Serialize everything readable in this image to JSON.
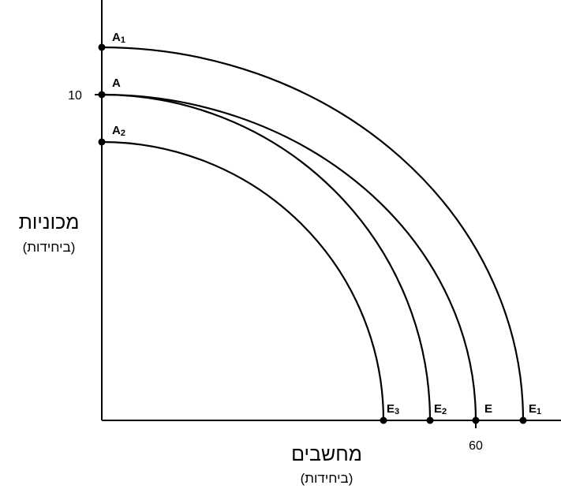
{
  "axes": {
    "y_label": "מכוניות",
    "y_unit": "(ביחידות)",
    "x_label": "מחשבים",
    "x_unit": "(ביחידות)",
    "y_tick": "10",
    "x_tick": "60"
  },
  "points": [
    {
      "label": "A",
      "sub": "1"
    },
    {
      "label": "A"
    },
    {
      "label": "A",
      "sub": "2"
    },
    {
      "label": "E",
      "sub": "3"
    },
    {
      "label": "E",
      "sub": "2"
    },
    {
      "label": "E"
    },
    {
      "label": "E",
      "sub": "1"
    }
  ]
}
